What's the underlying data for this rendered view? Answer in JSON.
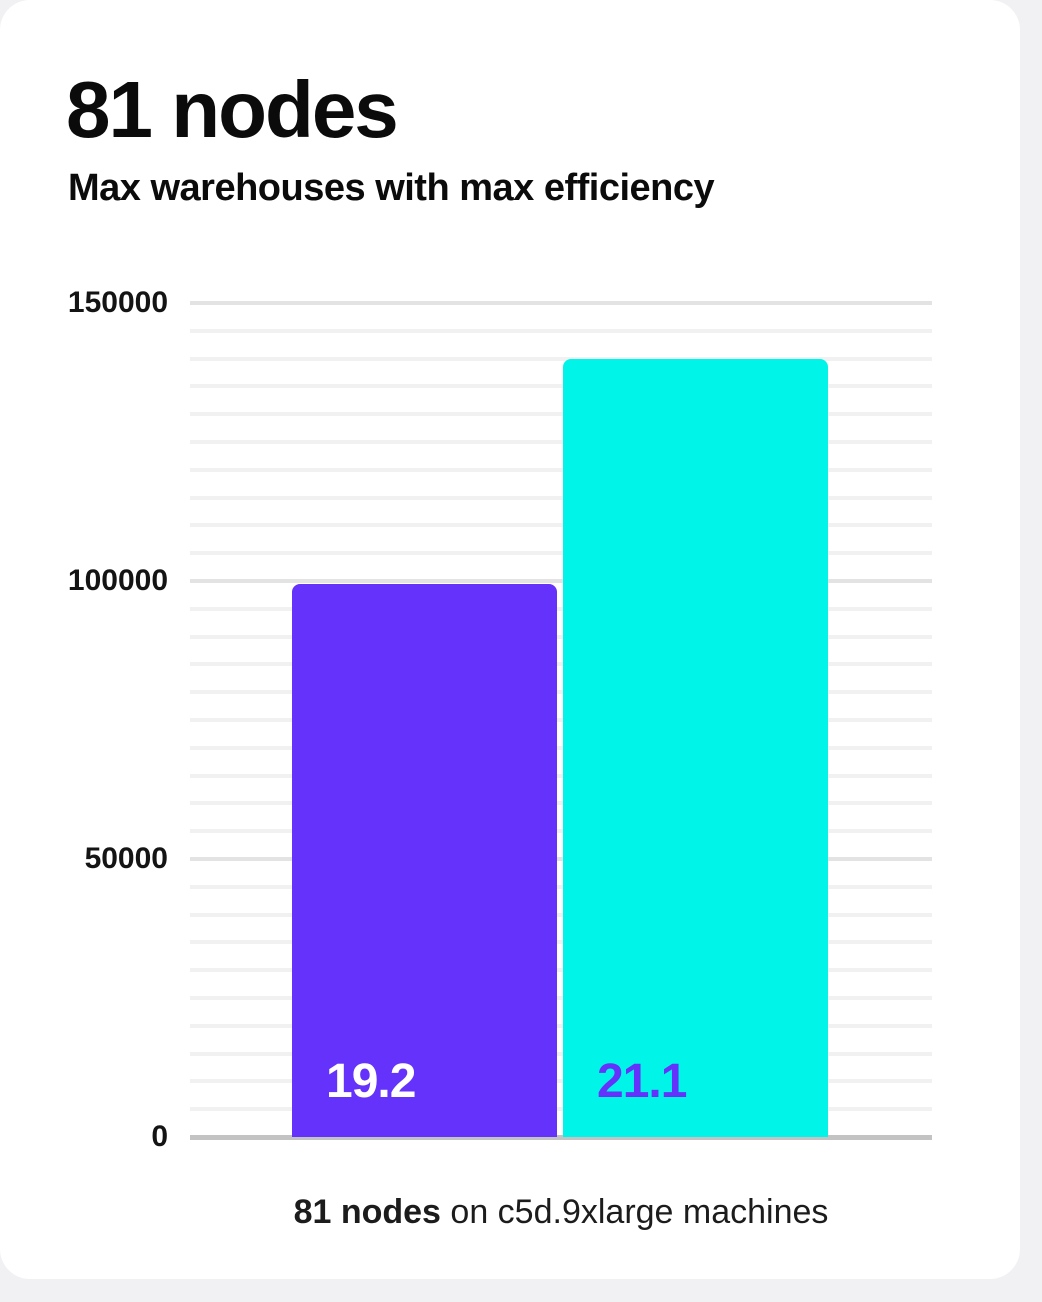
{
  "header": {
    "title": "81 nodes",
    "subtitle": "Max warehouses with max efficiency"
  },
  "caption": {
    "bold": "81 nodes",
    "rest": " on c5d.9xlarge machines"
  },
  "chart_data": {
    "type": "bar",
    "title": "81 nodes",
    "subtitle": "Max warehouses with max efficiency",
    "caption": "81 nodes on c5d.9xlarge machines",
    "categories": [
      "19.2",
      "21.1"
    ],
    "values": [
      99500,
      140000
    ],
    "series": [
      {
        "name": "19.2",
        "value": 99500,
        "bar_color": "#6432fa",
        "label_color": "#ffffff"
      },
      {
        "name": "21.1",
        "value": 140000,
        "bar_color": "#00f5e8",
        "label_color": "#6432fa"
      }
    ],
    "xlabel": "",
    "ylabel": "",
    "ylim": [
      0,
      150000
    ],
    "yticks": [
      150000,
      100000,
      50000,
      0
    ],
    "major_grid_step": 50000,
    "minor_grid_step": 5000,
    "grid": true,
    "legend": false,
    "colors": {
      "background": "#ffffff",
      "minor_gridline": "#f1f1f1",
      "major_gridline": "#e3e3e3",
      "axis_line": "#c3c3c3",
      "text": "#0b0b0b"
    }
  }
}
